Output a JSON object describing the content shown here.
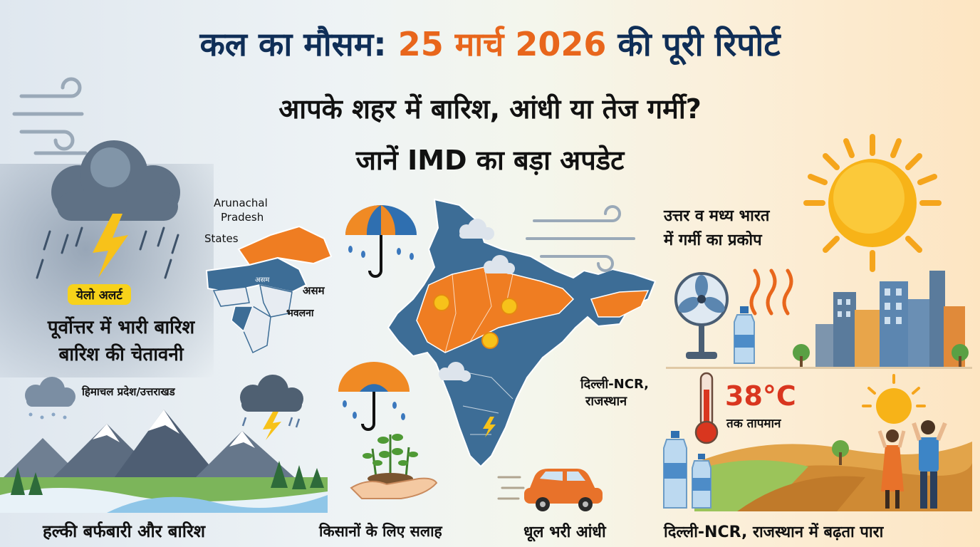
{
  "header": {
    "title_part1": "कल का मौसम: ",
    "title_accent": "25 मार्च 2026",
    "title_part2": " की पूरी रिपोर्ट",
    "subtitle_line1": "आपके शहर में बारिश, आंधी या तेज गर्मी?",
    "subtitle_line2": "जानें IMD का बड़ा अपडेट"
  },
  "left_panel": {
    "alert_badge": "येलो अलर्ट",
    "alert_line1": "पूर्वोत्तर में भारी बारिश",
    "alert_line2": "बारिश की चेतावनी",
    "region_label": "हिमाचल प्रदेश/उत्तराखड",
    "bottom_caption": "हल्की बर्फबारी और बारिश"
  },
  "northeast_inset": {
    "label_arunachal_1": "Arunachal",
    "label_arunachal_2": "Pradesh",
    "label_states": "States",
    "label_assam_small": "असम",
    "label_assam": "असम",
    "label_bhavlana": "भवलना"
  },
  "center": {
    "farmers_caption": "किसानों के लिए सलाह",
    "dust_caption": "धूल भरी आंधी",
    "delhi_label_1": "दिल्ली-NCR,",
    "delhi_label_2": "राजस्थान"
  },
  "right_panel": {
    "heat_line1": "उत्तर व मध्य भारत",
    "heat_line2": "में गर्मी का प्रकोप",
    "temperature": "38°C",
    "temperature_caption": "तक तापमान",
    "bottom_caption": "दिल्ली-NCR, राजस्थान में बढ़ता पारा"
  },
  "colors": {
    "title_navy": "#0f2e57",
    "title_accent": "#e8661c",
    "alert_yellow": "#f7d21a",
    "map_blue": "#3d6d96",
    "map_orange": "#ef7d22"
  }
}
